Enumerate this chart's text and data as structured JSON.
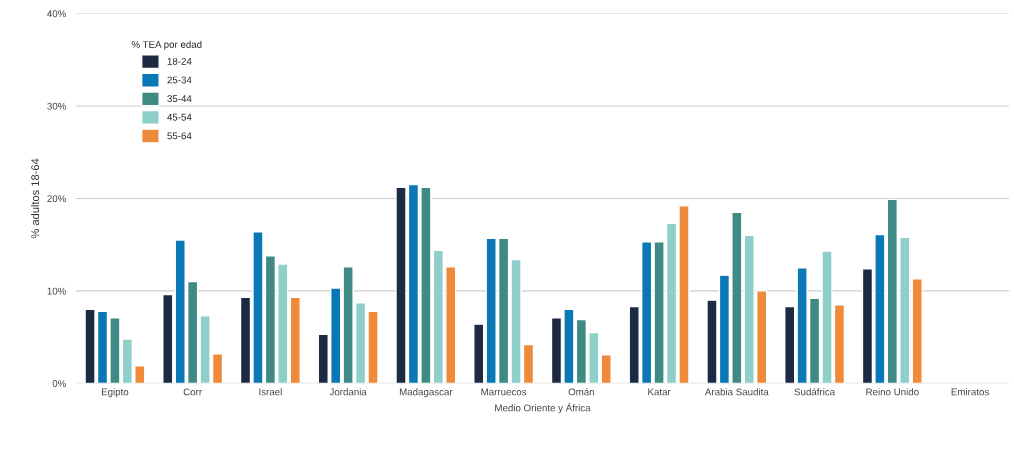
{
  "chart_data": {
    "type": "bar",
    "xlabel": "Medio Oriente y África",
    "ylabel": "% adultos 18-64",
    "legend_title": "% TEA por edad",
    "categories": [
      "Egipto",
      "Corr",
      "Israel",
      "Jordania",
      "Madagascar",
      "Marruecos",
      "Omán",
      "Katar",
      "Arabia Saudita",
      "Sudáfrica",
      "Reino Unido",
      "Emiratos"
    ],
    "series": [
      {
        "name": "18-24",
        "color": "#1c2a43",
        "values": [
          8,
          9.6,
          9.3,
          5.3,
          21.2,
          6.4,
          7.1,
          8.3,
          9,
          8.3,
          12.4,
          null
        ]
      },
      {
        "name": "25-34",
        "color": "#0a78b4",
        "values": [
          7.8,
          15.5,
          16.4,
          10.3,
          21.5,
          15.7,
          8,
          15.3,
          11.7,
          12.5,
          16.1,
          null
        ]
      },
      {
        "name": "35-44",
        "color": "#3f8a84",
        "values": [
          7.1,
          11,
          13.8,
          12.6,
          21.2,
          15.7,
          6.9,
          15.3,
          18.5,
          9.2,
          19.9,
          null
        ]
      },
      {
        "name": "45-54",
        "color": "#8ecfca",
        "values": [
          4.8,
          7.3,
          12.9,
          8.7,
          14.4,
          13.4,
          5.5,
          17.3,
          16,
          14.3,
          15.8,
          null
        ]
      },
      {
        "name": "55-64",
        "color": "#ef8a3a",
        "values": [
          1.9,
          3.2,
          9.3,
          7.8,
          12.6,
          4.2,
          3.1,
          19.2,
          10,
          8.5,
          11.3,
          null
        ]
      }
    ],
    "ylim": [
      0,
      40
    ],
    "yticks": [
      {
        "value": 0,
        "label": "0%"
      },
      {
        "value": 10,
        "label": "10%"
      },
      {
        "value": 20,
        "label": "20%"
      },
      {
        "value": 30,
        "label": "30%"
      },
      {
        "value": 40,
        "label": "40%"
      }
    ],
    "grid": "y",
    "legend": "top left"
  }
}
